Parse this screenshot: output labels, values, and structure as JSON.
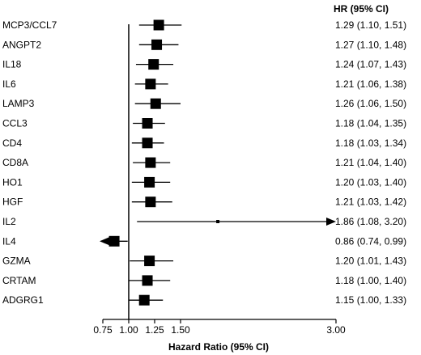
{
  "chart_data": {
    "type": "forest",
    "title": "",
    "xlabel": "Hazard Ratio (95% CI)",
    "hr_header": "HR (95% CI)",
    "reference_line": 1.0,
    "xlim": [
      0.75,
      3.0
    ],
    "xticks": [
      {
        "value": 0.75,
        "label": "0.75"
      },
      {
        "value": 1.0,
        "label": "1.00"
      },
      {
        "value": 1.25,
        "label": "1.25"
      },
      {
        "value": 1.5,
        "label": "1.50"
      },
      {
        "value": 3.0,
        "label": "3.00"
      }
    ],
    "rows": [
      {
        "name": "MCP3/CCL7",
        "hr": 1.29,
        "lo": 1.1,
        "hi": 1.51,
        "label": "1.29 (1.10, 1.51)"
      },
      {
        "name": "ANGPT2",
        "hr": 1.27,
        "lo": 1.1,
        "hi": 1.48,
        "label": "1.27 (1.10, 1.48)"
      },
      {
        "name": "IL18",
        "hr": 1.24,
        "lo": 1.07,
        "hi": 1.43,
        "label": "1.24 (1.07, 1.43)"
      },
      {
        "name": "IL6",
        "hr": 1.21,
        "lo": 1.06,
        "hi": 1.38,
        "label": "1.21 (1.06, 1.38)"
      },
      {
        "name": "LAMP3",
        "hr": 1.26,
        "lo": 1.06,
        "hi": 1.5,
        "label": "1.26 (1.06, 1.50)"
      },
      {
        "name": "CCL3",
        "hr": 1.18,
        "lo": 1.04,
        "hi": 1.35,
        "label": "1.18 (1.04, 1.35)"
      },
      {
        "name": "CD4",
        "hr": 1.18,
        "lo": 1.03,
        "hi": 1.34,
        "label": "1.18 (1.03, 1.34)"
      },
      {
        "name": "CD8A",
        "hr": 1.21,
        "lo": 1.04,
        "hi": 1.4,
        "label": "1.21 (1.04, 1.40)"
      },
      {
        "name": "HO1",
        "hr": 1.2,
        "lo": 1.03,
        "hi": 1.4,
        "label": "1.20 (1.03, 1.40)"
      },
      {
        "name": "HGF",
        "hr": 1.21,
        "lo": 1.03,
        "hi": 1.42,
        "label": "1.21 (1.03, 1.42)"
      },
      {
        "name": "IL2",
        "hr": 1.86,
        "lo": 1.08,
        "hi": 3.2,
        "label": "1.86 (1.08, 3.20)",
        "arrow_right": true
      },
      {
        "name": "IL4",
        "hr": 0.86,
        "lo": 0.74,
        "hi": 0.99,
        "label": "0.86 (0.74, 0.99)",
        "arrow_left": true
      },
      {
        "name": "GZMA",
        "hr": 1.2,
        "lo": 1.01,
        "hi": 1.43,
        "label": "1.20 (1.01, 1.43)"
      },
      {
        "name": "CRTAM",
        "hr": 1.18,
        "lo": 1.0,
        "hi": 1.4,
        "label": "1.18 (1.00, 1.40)"
      },
      {
        "name": "ADGRG1",
        "hr": 1.15,
        "lo": 1.0,
        "hi": 1.33,
        "label": "1.15 (1.00, 1.33)"
      }
    ]
  }
}
